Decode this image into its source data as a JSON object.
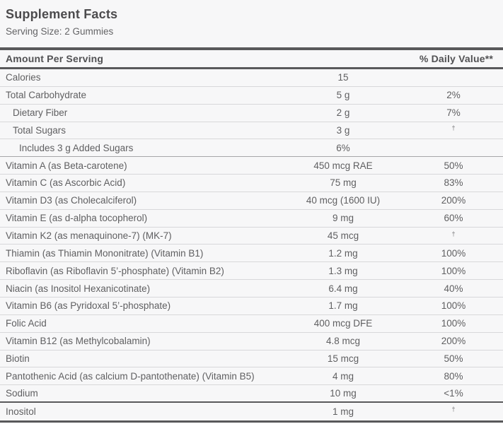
{
  "label": {
    "title": "Supplement Facts",
    "serving_size": "Serving Size: 2 Gummies"
  },
  "table": {
    "header": {
      "amount_col": "Amount Per Serving",
      "dv_col": "% Daily Value**"
    },
    "rows": [
      {
        "name": "Calories",
        "amount": "15",
        "dv": "",
        "indent": 0
      },
      {
        "name": "Total Carbohydrate",
        "amount": "5 g",
        "dv": "2%",
        "indent": 0
      },
      {
        "name": "Dietary Fiber",
        "amount": "2 g",
        "dv": "7%",
        "indent": 1
      },
      {
        "name": "Total Sugars",
        "amount": "3 g",
        "dv": "†",
        "indent": 1
      },
      {
        "name": "Includes 3 g Added Sugars",
        "amount": "6%",
        "dv": "",
        "indent": 2,
        "divider": "medium"
      },
      {
        "name": "Vitamin A (as Beta-carotene)",
        "amount": "450 mcg RAE",
        "dv": "50%",
        "indent": 0
      },
      {
        "name": "Vitamin C (as Ascorbic Acid)",
        "amount": "75 mg",
        "dv": "83%",
        "indent": 0
      },
      {
        "name": "Vitamin D3 (as Cholecalciferol)",
        "amount": "40 mcg (1600 IU)",
        "dv": "200%",
        "indent": 0
      },
      {
        "name": "Vitamin E (as d-alpha tocopherol)",
        "amount": "9 mg",
        "dv": "60%",
        "indent": 0
      },
      {
        "name": "Vitamin K2 (as menaquinone-7) (MK-7)",
        "amount": "45 mcg",
        "dv": "†",
        "indent": 0
      },
      {
        "name": "Thiamin (as Thiamin Mononitrate) (Vitamin B1)",
        "amount": "1.2 mg",
        "dv": "100%",
        "indent": 0
      },
      {
        "name": "Riboflavin (as Riboflavin 5’-phosphate) (Vitamin B2)",
        "amount": "1.3 mg",
        "dv": "100%",
        "indent": 0
      },
      {
        "name": "Niacin (as Inositol Hexanicotinate)",
        "amount": "6.4 mg",
        "dv": "40%",
        "indent": 0
      },
      {
        "name": "Vitamin B6 (as Pyridoxal 5’-phosphate)",
        "amount": "1.7 mg",
        "dv": "100%",
        "indent": 0
      },
      {
        "name": "Folic Acid",
        "amount": "400 mcg DFE",
        "dv": "100%",
        "indent": 0
      },
      {
        "name": "Vitamin B12 (as Methylcobalamin)",
        "amount": "4.8 mcg",
        "dv": "200%",
        "indent": 0
      },
      {
        "name": "Biotin",
        "amount": "15 mcg",
        "dv": "50%",
        "indent": 0
      },
      {
        "name": "Pantothenic Acid (as calcium D-pantothenate) (Vitamin B5)",
        "amount": "4 mg",
        "dv": "80%",
        "indent": 0
      },
      {
        "name": "Sodium",
        "amount": "10 mg",
        "dv": "<1%",
        "indent": 0,
        "divider": "thick"
      },
      {
        "name": "Inositol",
        "amount": "1 mg",
        "dv": "†",
        "indent": 0
      }
    ],
    "colors": {
      "text": "#5f5f61",
      "heavy_rule": "#59595b",
      "light_rule": "#d8d8da",
      "background": "#f7f7f8"
    }
  }
}
